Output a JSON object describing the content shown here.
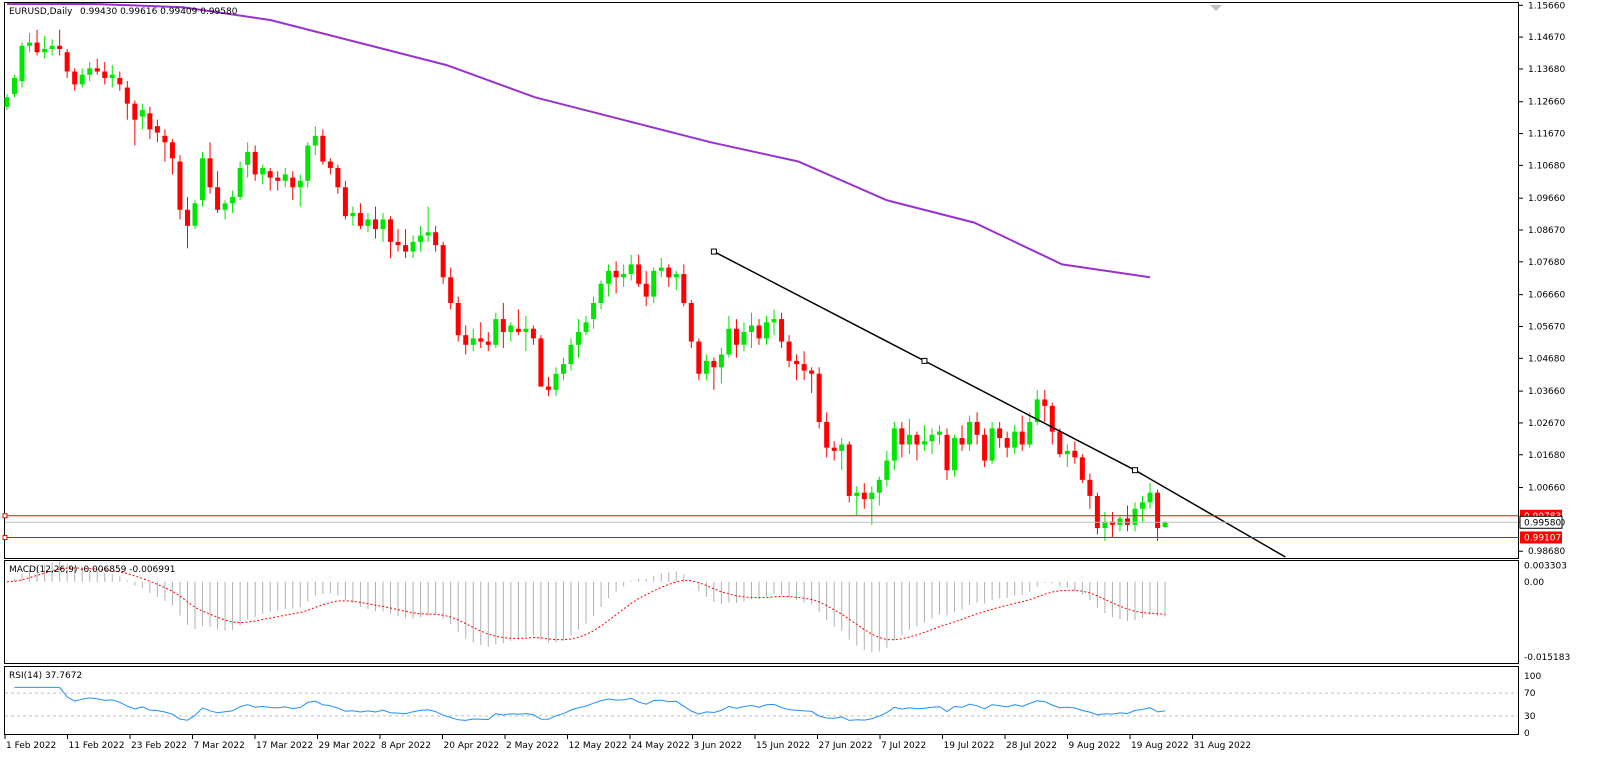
{
  "chart_data": {
    "type": "candlestick",
    "symbol_label": "EURUSD,Daily",
    "ohlc_label": "0.99430 0.99616 0.99409 0.99580",
    "price_axis": {
      "ylim": [
        0.985,
        1.157
      ],
      "ticks": [
        "1.15660",
        "1.14670",
        "1.13680",
        "1.12660",
        "1.11670",
        "1.10680",
        "1.09660",
        "1.08670",
        "1.07680",
        "1.06660",
        "1.05670",
        "1.04680",
        "1.03660",
        "1.02670",
        "1.01680",
        "1.00660",
        "0.99580",
        "0.98680"
      ]
    },
    "x_ticks": [
      "1 Feb 2022",
      "11 Feb 2022",
      "23 Feb 2022",
      "7 Mar 2022",
      "17 Mar 2022",
      "29 Mar 2022",
      "8 Apr 2022",
      "20 Apr 2022",
      "2 May 2022",
      "12 May 2022",
      "24 May 2022",
      "3 Jun 2022",
      "15 Jun 2022",
      "27 Jun 2022",
      "7 Jul 2022",
      "19 Jul 2022",
      "28 Jul 2022",
      "9 Aug 2022",
      "19 Aug 2022",
      "31 Aug 2022"
    ],
    "candles_ohlc": [
      [
        1.125,
        1.129,
        1.124,
        1.128
      ],
      [
        1.129,
        1.135,
        1.128,
        1.134
      ],
      [
        1.133,
        1.145,
        1.131,
        1.144
      ],
      [
        1.144,
        1.148,
        1.142,
        1.145
      ],
      [
        1.145,
        1.149,
        1.141,
        1.142
      ],
      [
        1.142,
        1.147,
        1.14,
        1.143
      ],
      [
        1.143,
        1.146,
        1.141,
        1.144
      ],
      [
        1.144,
        1.149,
        1.141,
        1.143
      ],
      [
        1.142,
        1.143,
        1.134,
        1.136
      ],
      [
        1.136,
        1.137,
        1.13,
        1.132
      ],
      [
        1.132,
        1.137,
        1.131,
        1.135
      ],
      [
        1.135,
        1.139,
        1.133,
        1.137
      ],
      [
        1.137,
        1.14,
        1.135,
        1.136
      ],
      [
        1.136,
        1.139,
        1.132,
        1.134
      ],
      [
        1.134,
        1.138,
        1.131,
        1.135
      ],
      [
        1.134,
        1.136,
        1.13,
        1.132
      ],
      [
        1.131,
        1.133,
        1.121,
        1.126
      ],
      [
        1.126,
        1.127,
        1.113,
        1.121
      ],
      [
        1.122,
        1.126,
        1.118,
        1.124
      ],
      [
        1.123,
        1.125,
        1.115,
        1.118
      ],
      [
        1.119,
        1.121,
        1.114,
        1.117
      ],
      [
        1.116,
        1.118,
        1.108,
        1.114
      ],
      [
        1.114,
        1.115,
        1.104,
        1.109
      ],
      [
        1.108,
        1.11,
        1.09,
        1.093
      ],
      [
        1.093,
        1.097,
        1.081,
        1.088
      ],
      [
        1.088,
        1.096,
        1.087,
        1.095
      ],
      [
        1.096,
        1.111,
        1.094,
        1.109
      ],
      [
        1.109,
        1.114,
        1.098,
        1.1
      ],
      [
        1.1,
        1.105,
        1.092,
        1.093
      ],
      [
        1.093,
        1.096,
        1.09,
        1.095
      ],
      [
        1.095,
        1.099,
        1.092,
        1.097
      ],
      [
        1.097,
        1.108,
        1.096,
        1.106
      ],
      [
        1.107,
        1.114,
        1.103,
        1.111
      ],
      [
        1.111,
        1.113,
        1.102,
        1.104
      ],
      [
        1.104,
        1.107,
        1.101,
        1.106
      ],
      [
        1.105,
        1.106,
        1.099,
        1.103
      ],
      [
        1.103,
        1.105,
        1.099,
        1.102
      ],
      [
        1.102,
        1.106,
        1.1,
        1.104
      ],
      [
        1.103,
        1.105,
        1.096,
        1.1
      ],
      [
        1.1,
        1.104,
        1.094,
        1.102
      ],
      [
        1.102,
        1.114,
        1.1,
        1.113
      ],
      [
        1.113,
        1.119,
        1.11,
        1.116
      ],
      [
        1.116,
        1.118,
        1.107,
        1.108
      ],
      [
        1.108,
        1.109,
        1.104,
        1.106
      ],
      [
        1.106,
        1.107,
        1.098,
        1.1
      ],
      [
        1.1,
        1.102,
        1.09,
        1.091
      ],
      [
        1.091,
        1.094,
        1.088,
        1.092
      ],
      [
        1.092,
        1.095,
        1.087,
        1.088
      ],
      [
        1.088,
        1.092,
        1.086,
        1.09
      ],
      [
        1.09,
        1.094,
        1.084,
        1.087
      ],
      [
        1.087,
        1.092,
        1.083,
        1.09
      ],
      [
        1.09,
        1.091,
        1.078,
        1.083
      ],
      [
        1.083,
        1.087,
        1.08,
        1.082
      ],
      [
        1.082,
        1.087,
        1.078,
        1.08
      ],
      [
        1.08,
        1.085,
        1.078,
        1.083
      ],
      [
        1.083,
        1.088,
        1.08,
        1.085
      ],
      [
        1.085,
        1.094,
        1.083,
        1.086
      ],
      [
        1.086,
        1.088,
        1.08,
        1.082
      ],
      [
        1.082,
        1.083,
        1.07,
        1.072
      ],
      [
        1.072,
        1.075,
        1.062,
        1.064
      ],
      [
        1.064,
        1.066,
        1.052,
        1.054
      ],
      [
        1.054,
        1.057,
        1.048,
        1.051
      ],
      [
        1.051,
        1.056,
        1.049,
        1.053
      ],
      [
        1.053,
        1.058,
        1.05,
        1.052
      ],
      [
        1.052,
        1.055,
        1.049,
        1.051
      ],
      [
        1.051,
        1.061,
        1.05,
        1.059
      ],
      [
        1.059,
        1.064,
        1.05,
        1.055
      ],
      [
        1.055,
        1.058,
        1.052,
        1.057
      ],
      [
        1.056,
        1.062,
        1.054,
        1.055
      ],
      [
        1.055,
        1.06,
        1.049,
        1.056
      ],
      [
        1.056,
        1.057,
        1.051,
        1.053
      ],
      [
        1.053,
        1.054,
        1.045,
        1.038
      ],
      [
        1.038,
        1.041,
        1.035,
        1.037
      ],
      [
        1.037,
        1.044,
        1.035,
        1.042
      ],
      [
        1.042,
        1.047,
        1.04,
        1.045
      ],
      [
        1.045,
        1.053,
        1.043,
        1.051
      ],
      [
        1.051,
        1.059,
        1.047,
        1.055
      ],
      [
        1.055,
        1.06,
        1.054,
        1.058
      ],
      [
        1.059,
        1.066,
        1.056,
        1.064
      ],
      [
        1.064,
        1.071,
        1.062,
        1.07
      ],
      [
        1.07,
        1.076,
        1.066,
        1.074
      ],
      [
        1.074,
        1.077,
        1.067,
        1.072
      ],
      [
        1.072,
        1.076,
        1.069,
        1.073
      ],
      [
        1.073,
        1.079,
        1.071,
        1.076
      ],
      [
        1.076,
        1.079,
        1.069,
        1.07
      ],
      [
        1.07,
        1.074,
        1.063,
        1.066
      ],
      [
        1.066,
        1.075,
        1.064,
        1.074
      ],
      [
        1.074,
        1.078,
        1.072,
        1.075
      ],
      [
        1.075,
        1.076,
        1.069,
        1.072
      ],
      [
        1.072,
        1.074,
        1.068,
        1.073
      ],
      [
        1.073,
        1.076,
        1.063,
        1.064
      ],
      [
        1.064,
        1.065,
        1.05,
        1.052
      ],
      [
        1.052,
        1.053,
        1.04,
        1.042
      ],
      [
        1.042,
        1.048,
        1.04,
        1.046
      ],
      [
        1.046,
        1.047,
        1.037,
        1.044
      ],
      [
        1.044,
        1.05,
        1.039,
        1.048
      ],
      [
        1.048,
        1.06,
        1.047,
        1.056
      ],
      [
        1.056,
        1.059,
        1.047,
        1.051
      ],
      [
        1.051,
        1.058,
        1.049,
        1.055
      ],
      [
        1.055,
        1.061,
        1.05,
        1.057
      ],
      [
        1.057,
        1.059,
        1.051,
        1.053
      ],
      [
        1.053,
        1.06,
        1.051,
        1.058
      ],
      [
        1.058,
        1.062,
        1.054,
        1.059
      ],
      [
        1.059,
        1.061,
        1.05,
        1.052
      ],
      [
        1.052,
        1.054,
        1.044,
        1.046
      ],
      [
        1.046,
        1.048,
        1.04,
        1.045
      ],
      [
        1.045,
        1.049,
        1.04,
        1.043
      ],
      [
        1.043,
        1.044,
        1.036,
        1.042
      ],
      [
        1.042,
        1.044,
        1.025,
        1.027
      ],
      [
        1.027,
        1.03,
        1.016,
        1.019
      ],
      [
        1.019,
        1.021,
        1.015,
        1.018
      ],
      [
        1.018,
        1.022,
        1.012,
        1.02
      ],
      [
        1.02,
        1.021,
        1.002,
        1.004
      ],
      [
        1.004,
        1.007,
        0.998,
        1.005
      ],
      [
        1.005,
        1.008,
        1.0,
        1.003
      ],
      [
        1.003,
        1.007,
        0.995,
        1.005
      ],
      [
        1.005,
        1.01,
        1.001,
        1.009
      ],
      [
        1.009,
        1.018,
        1.007,
        1.015
      ],
      [
        1.015,
        1.027,
        1.012,
        1.025
      ],
      [
        1.025,
        1.027,
        1.016,
        1.02
      ],
      [
        1.02,
        1.028,
        1.017,
        1.023
      ],
      [
        1.023,
        1.024,
        1.015,
        1.02
      ],
      [
        1.02,
        1.026,
        1.018,
        1.021
      ],
      [
        1.021,
        1.025,
        1.017,
        1.023
      ],
      [
        1.023,
        1.026,
        1.02,
        1.024
      ],
      [
        1.023,
        1.025,
        1.009,
        1.012
      ],
      [
        1.012,
        1.023,
        1.01,
        1.022
      ],
      [
        1.022,
        1.026,
        1.018,
        1.02
      ],
      [
        1.02,
        1.029,
        1.018,
        1.027
      ],
      [
        1.027,
        1.03,
        1.02,
        1.023
      ],
      [
        1.023,
        1.025,
        1.013,
        1.015
      ],
      [
        1.015,
        1.027,
        1.014,
        1.025
      ],
      [
        1.025,
        1.027,
        1.019,
        1.022
      ],
      [
        1.022,
        1.024,
        1.016,
        1.019
      ],
      [
        1.019,
        1.026,
        1.017,
        1.024
      ],
      [
        1.024,
        1.029,
        1.018,
        1.02
      ],
      [
        1.02,
        1.03,
        1.019,
        1.027
      ],
      [
        1.027,
        1.037,
        1.026,
        1.034
      ],
      [
        1.034,
        1.037,
        1.027,
        1.032
      ],
      [
        1.032,
        1.033,
        1.02,
        1.024
      ],
      [
        1.024,
        1.025,
        1.016,
        1.017
      ],
      [
        1.017,
        1.02,
        1.013,
        1.018
      ],
      [
        1.018,
        1.021,
        1.014,
        1.016
      ],
      [
        1.016,
        1.017,
        1.008,
        1.009
      ],
      [
        1.009,
        1.011,
        1.0,
        1.004
      ],
      [
        1.004,
        1.005,
        0.992,
        0.994
      ],
      [
        0.994,
        0.999,
        0.99,
        0.996
      ],
      [
        0.996,
        0.999,
        0.991,
        0.995
      ],
      [
        0.995,
        0.998,
        0.993,
        0.997
      ],
      [
        0.997,
        1.001,
        0.993,
        0.995
      ],
      [
        0.995,
        1.002,
        0.993,
        1.0
      ],
      [
        1.0,
        1.004,
        0.996,
        1.002
      ],
      [
        1.002,
        1.008,
        1.0,
        1.005
      ],
      [
        1.005,
        1.006,
        0.99,
        0.994
      ],
      [
        0.9943,
        0.9962,
        0.9941,
        0.9958
      ]
    ],
    "moving_average": {
      "color": "#9932cc",
      "values": [
        1.157,
        1.157,
        1.156,
        1.152,
        1.145,
        1.138,
        1.128,
        1.121,
        1.114,
        1.108,
        1.096,
        1.089,
        1.076,
        1.072
      ]
    },
    "trendline": {
      "points": [
        [
          1.08,
          1.08
        ],
        [
          1.046,
          1.046
        ],
        [
          1.012,
          1.012
        ],
        [
          0.985,
          0.985
        ]
      ]
    },
    "horizontal_levels": [
      {
        "value": 0.99783,
        "label": "0.99783",
        "color": "#ff0000"
      },
      {
        "value": 0.99107,
        "label": "0.99107",
        "color": "#ff0000"
      }
    ],
    "current_price": {
      "value": 0.9958,
      "label": "0.99580"
    },
    "up_color": "#00e600",
    "down_color": "#ff0000",
    "macd": {
      "label": "MACD(12,26,9) -0.006859 -0.006991",
      "ylim": [
        -0.0162,
        0.004
      ],
      "ticks": [
        "0.003303",
        "0.00",
        "-0.015183"
      ],
      "signal_color": "#ff0000"
    },
    "rsi": {
      "label": "RSI(14) 37.7672",
      "levels": [
        70,
        30
      ],
      "ticks": [
        "100",
        "70",
        "30",
        "0"
      ],
      "color": "#1e90ff"
    }
  }
}
